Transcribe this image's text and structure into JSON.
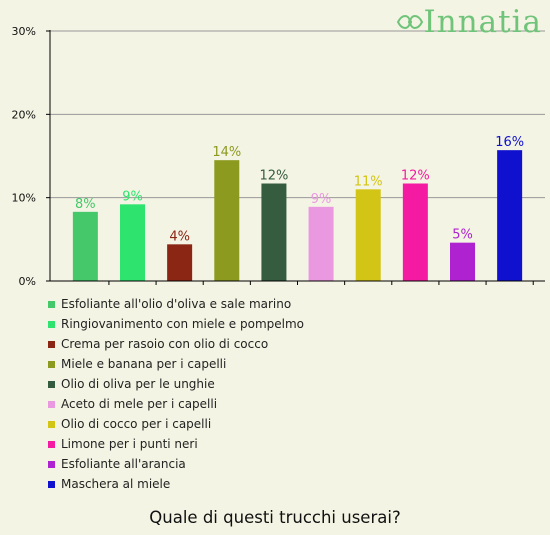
{
  "brand": {
    "logo_text": "Innatia",
    "logo_mark": "double-leaf-icon",
    "color": "#6fc47a"
  },
  "question": "Quale di questi trucchi userai?",
  "chart_data": {
    "type": "bar",
    "ylim": [
      0,
      30
    ],
    "yticks": [
      0,
      10,
      20,
      30
    ],
    "ytick_labels": [
      "0%",
      "10%",
      "20%",
      "30%"
    ],
    "grid": true,
    "legend_position": "bottom",
    "categories": [
      "Esfoliante all'olio d'oliva e sale marino",
      "Ringiovanimento con miele e pompelmo",
      "Crema per rasoio con olio di cocco",
      "Miele e banana per i capelli",
      "Olio di oliva per le unghie",
      "Aceto di mele per i capelli",
      "Olio di cocco per i capelli",
      "Limone per i punti neri",
      "Esfoliante all'arancia",
      "Maschera al miele"
    ],
    "values": [
      8.3,
      9.2,
      4.4,
      14.5,
      11.7,
      8.9,
      11.0,
      11.7,
      4.6,
      15.7
    ],
    "data_labels": [
      "8%",
      "9%",
      "4%",
      "14%",
      "12%",
      "9%",
      "11%",
      "12%",
      "5%",
      "16%"
    ],
    "colors": [
      "#45c86a",
      "#2ee46e",
      "#8b2514",
      "#8d9a20",
      "#355c3f",
      "#ea98e0",
      "#d2c515",
      "#f41ba2",
      "#ae22cf",
      "#1010cf"
    ]
  }
}
